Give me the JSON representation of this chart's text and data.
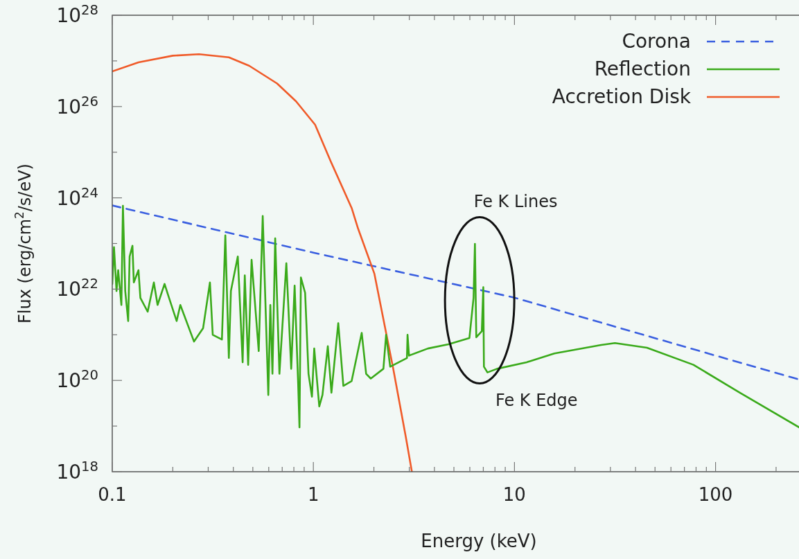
{
  "chart_data": {
    "type": "line",
    "xlabel": "Energy (keV)",
    "ylabel": "Flux (erg/cm$^{2}$/s/eV)",
    "log": "xy",
    "legend": "top right",
    "grid": false,
    "xlim": [
      0.1,
      260
    ],
    "ylim": [
      1e+18,
      1e+28
    ],
    "xticks": [
      0.1,
      {
        "value": 0.2,
        "label": null
      },
      {
        "value": 0.3,
        "label": null
      },
      {
        "value": 0.4,
        "label": null
      },
      {
        "value": 0.5,
        "label": null
      },
      {
        "value": 0.6,
        "label": null
      },
      {
        "value": 0.7,
        "label": null
      },
      {
        "value": 0.8,
        "label": null
      },
      {
        "value": 0.9,
        "label": null
      },
      1,
      {
        "value": 2,
        "label": null
      },
      {
        "value": 3,
        "label": null
      },
      {
        "value": 4,
        "label": null
      },
      {
        "value": 5,
        "label": null
      },
      {
        "value": 6,
        "label": null
      },
      {
        "value": 7,
        "label": null
      },
      {
        "value": 8,
        "label": null
      },
      {
        "value": 9,
        "label": null
      },
      10,
      {
        "value": 20,
        "label": null
      },
      {
        "value": 30,
        "label": null
      },
      {
        "value": 40,
        "label": null
      },
      {
        "value": 50,
        "label": null
      },
      {
        "value": 60,
        "label": null
      },
      {
        "value": 70,
        "label": null
      },
      {
        "value": 80,
        "label": null
      },
      {
        "value": 90,
        "label": null
      },
      100,
      {
        "value": 200,
        "label": null
      }
    ],
    "yticks": [
      {
        "value": 1e+18,
        "label": "10$^{18}$"
      },
      {
        "value": 1e+19,
        "label": null
      },
      {
        "value": 1e+20,
        "label": "10$^{20}$"
      },
      {
        "value": 1e+21,
        "label": null
      },
      {
        "value": 1e+22,
        "label": "10$^{22}$"
      },
      {
        "value": 1e+23,
        "label": null
      },
      {
        "value": 1e+24,
        "label": "10$^{24}$"
      },
      {
        "value": 1e+25,
        "label": null
      },
      {
        "value": 1e+26,
        "label": "10$^{26}$"
      },
      {
        "value": 1e+27,
        "label": null
      },
      {
        "value": 1e+28,
        "label": "10$^{28}$"
      }
    ],
    "annotations": [
      {
        "text": "Fe K Lines",
        "x": 6.4,
        "y": 1e+23
      },
      {
        "text": "Fe K Edge",
        "x": 7.1,
        "y": 2e+20
      }
    ],
    "series": [
      {
        "name": "Corona",
        "color": "#3a5fe0",
        "line_style": "dashed",
        "x": [
          0.1,
          1,
          10,
          100,
          260
        ],
        "values": [
          6.8e+23,
          6.3e+22,
          6.5e+21,
          3.5e+20,
          1.05e+20
        ]
      },
      {
        "name": "Reflection",
        "color": "#3aaa1a",
        "x": [
          0.1,
          0.102,
          0.105,
          0.107,
          0.111,
          0.113,
          0.116,
          0.12,
          0.122,
          0.126,
          0.128,
          0.135,
          0.138,
          0.15,
          0.161,
          0.168,
          0.182,
          0.19,
          0.209,
          0.218,
          0.255,
          0.283,
          0.306,
          0.316,
          0.351,
          0.365,
          0.38,
          0.389,
          0.421,
          0.445,
          0.456,
          0.474,
          0.493,
          0.535,
          0.56,
          0.597,
          0.611,
          0.626,
          0.646,
          0.678,
          0.734,
          0.776,
          0.807,
          0.84,
          0.853,
          0.867,
          0.91,
          0.946,
          0.984,
          1.01,
          1.07,
          1.11,
          1.18,
          1.23,
          1.33,
          1.41,
          1.55,
          1.74,
          1.83,
          1.93,
          2.23,
          2.3,
          2.41,
          2.92,
          2.94,
          2.99,
          3.71,
          4.7,
          5.97,
          6.26,
          6.36,
          6.46,
          6.88,
          7.0,
          7.05,
          7.34,
          8.2,
          11.5,
          15.8,
          27,
          31.6,
          45.6,
          77.6,
          132,
          260
        ],
        "values": [
          1.3e+22,
          8.3e+22,
          9.1e+21,
          2.6e+22,
          4.5e+21,
          6.7e+23,
          9.1e+21,
          2e+21,
          5.2e+22,
          8.9e+22,
          1.4e+22,
          2.6e+22,
          6.4e+21,
          3.2e+21,
          1.4e+22,
          4.5e+21,
          1.3e+22,
          7.2e+21,
          2e+21,
          4.5e+21,
          7.1e+20,
          1.4e+21,
          1.4e+22,
          1e+21,
          7.9e+20,
          1.5e+23,
          3.1e+20,
          9.1e+21,
          5.2e+22,
          2.5e+20,
          2e+22,
          2.2e+20,
          4.4e+22,
          4.4e+20,
          4e+23,
          4.8e+19,
          4.5e+21,
          1.4e+20,
          1.3e+23,
          1.4e+20,
          3.7e+22,
          1.8e+20,
          1.2e+22,
          8.8e+19,
          9.4e+18,
          1.8e+22,
          8.3e+21,
          1.4e+20,
          4.4e+19,
          5e+20,
          2.7e+19,
          4.8e+19,
          5.6e+20,
          5.4e+19,
          1.8e+21,
          7.6e+19,
          9.7e+19,
          1.1e+21,
          1.4e+20,
          1.1e+20,
          1.8e+20,
          1e+21,
          2e+20,
          3.1e+20,
          1e+21,
          3.5e+20,
          5e+20,
          6.2e+20,
          8.5e+20,
          6.4e+21,
          9.8e+22,
          8.8e+20,
          1.2e+21,
          1.1e+22,
          2e+20,
          1.5e+20,
          1.8e+20,
          2.5e+20,
          3.9e+20,
          6e+20,
          6.6e+20,
          5.2e+20,
          2.2e+20,
          5.4e+19,
          9.4e+18
        ]
      },
      {
        "name": "Accretion Disk",
        "color": "#f05a28",
        "x": [
          0.1,
          0.135,
          0.2,
          0.27,
          0.38,
          0.48,
          0.66,
          0.82,
          1.02,
          1.22,
          1.55,
          1.67,
          2.01,
          2.3,
          2.49,
          2.88,
          3.09
        ],
        "values": [
          5.9e+26,
          9.3e+26,
          1.3e+27,
          1.4e+27,
          1.2e+27,
          7.8e+26,
          3.2e+26,
          1.3e+26,
          4e+25,
          6.3e+24,
          6e+23,
          2.1e+23,
          2.2e+22,
          1.1e+21,
          1.9e+20,
          5.9e+18,
          1e+18
        ]
      }
    ]
  }
}
